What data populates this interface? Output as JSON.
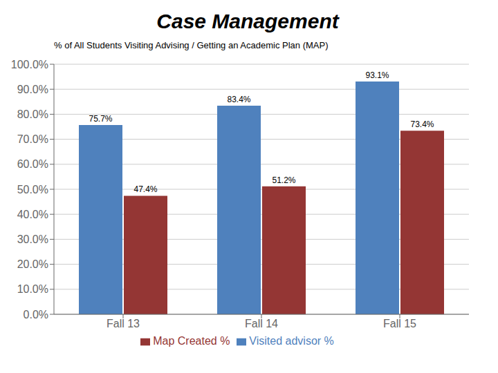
{
  "chart_data": {
    "type": "bar",
    "title": "Case Management",
    "subtitle": "% of All Students Visiting Advising / Getting an Academic Plan (MAP)",
    "categories": [
      "Fall 13",
      "Fall 14",
      "Fall 15"
    ],
    "series": [
      {
        "name": "Visited advisor %",
        "color": "#4F81BD",
        "values": [
          75.7,
          83.4,
          93.1
        ],
        "value_labels": [
          "75.7%",
          "83.4%",
          "93.1%"
        ]
      },
      {
        "name": "Map Created %",
        "color": "#943634",
        "values": [
          47.4,
          51.2,
          73.4
        ],
        "value_labels": [
          "47.4%",
          "51.2%",
          "73.4%"
        ]
      }
    ],
    "ylim": [
      0,
      100
    ],
    "yticks": [
      {
        "value": 0,
        "label": "0.0%"
      },
      {
        "value": 10,
        "label": "10.0%"
      },
      {
        "value": 20,
        "label": "20.0%"
      },
      {
        "value": 30,
        "label": "30.0%"
      },
      {
        "value": 40,
        "label": "40.0%"
      },
      {
        "value": 50,
        "label": "50.0%"
      },
      {
        "value": 60,
        "label": "60.0%"
      },
      {
        "value": 70,
        "label": "70.0%"
      },
      {
        "value": 80,
        "label": "80.0%"
      },
      {
        "value": 90,
        "label": "90.0%"
      },
      {
        "value": 100,
        "label": "100.0%"
      }
    ],
    "grid": true,
    "legend": "bottom",
    "data_labels": true
  }
}
